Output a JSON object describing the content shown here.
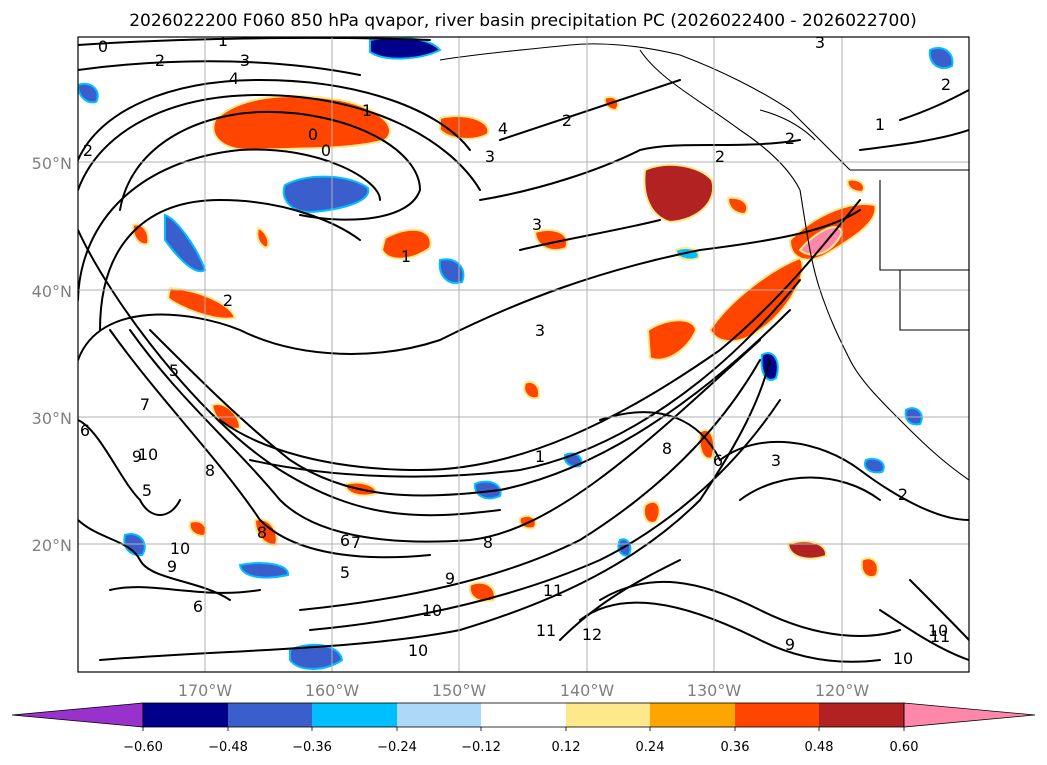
{
  "title": "2026022200 F060 850 hPa qvapor, river basin precipitation PC (2026022400 - 2026022700)",
  "lat_labels": [
    "50°N",
    "40°N",
    "30°N",
    "20°N"
  ],
  "lon_labels": [
    "170°W",
    "160°W",
    "150°W",
    "140°W",
    "130°W",
    "120°W"
  ],
  "colorbar": {
    "ticks": [
      "−0.60",
      "−0.48",
      "−0.36",
      "−0.24",
      "−0.12",
      "0.12",
      "0.24",
      "0.36",
      "0.48",
      "0.60"
    ],
    "colors": [
      "#9932cc",
      "#00008b",
      "#3a5fcd",
      "#00bfff",
      "#add8f7",
      "#ffffff",
      "#fde98c",
      "#ffa500",
      "#ff4500",
      "#b22222",
      "#ff88aa"
    ]
  },
  "contour_labels": [
    "0",
    "1",
    "2",
    "3",
    "4",
    "0",
    "1",
    "0",
    "2",
    "3",
    "4",
    "3",
    "2",
    "2",
    "2",
    "2",
    "3",
    "1",
    "2",
    "1",
    "3",
    "6",
    "7",
    "8",
    "9",
    "10",
    "5",
    "6",
    "5",
    "10",
    "9",
    "8",
    "6",
    "7",
    "8",
    "9",
    "10",
    "11",
    "11",
    "12",
    "10",
    "9",
    "10",
    "10",
    "11",
    "8",
    "3",
    "2",
    "6",
    "5",
    "1"
  ],
  "map_extent": {
    "lon": [
      -180,
      -110
    ],
    "lat": [
      10,
      60
    ]
  },
  "color_meaning": {
    "warm": "positive precipitation PC",
    "cool": "negative precipitation PC"
  }
}
